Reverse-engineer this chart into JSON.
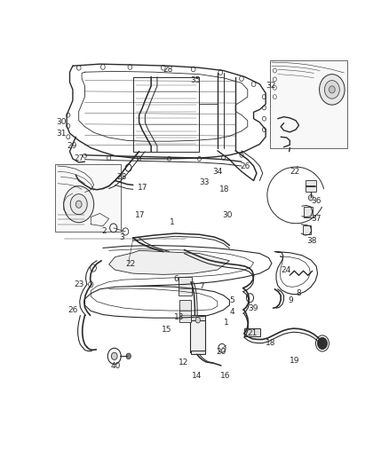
{
  "bg_color": "#ffffff",
  "fig_width": 4.38,
  "fig_height": 5.33,
  "dpi": 100,
  "lc": "#2a2a2a",
  "lc_light": "#555555",
  "lw": 0.8,
  "fs": 6.5,
  "labels_top": {
    "28a": [
      0.38,
      0.965,
      "28"
    ],
    "35": [
      0.47,
      0.935,
      "35"
    ],
    "30a": [
      0.025,
      0.82,
      "30"
    ],
    "31": [
      0.025,
      0.79,
      "31"
    ],
    "29": [
      0.06,
      0.755,
      "29"
    ],
    "27": [
      0.085,
      0.72,
      "27"
    ],
    "28b": [
      0.225,
      0.67,
      "28"
    ],
    "17a": [
      0.295,
      0.64,
      "17"
    ],
    "17b": [
      0.285,
      0.565,
      "17"
    ],
    "2": [
      0.175,
      0.52,
      "2"
    ],
    "3": [
      0.235,
      0.505,
      "3"
    ],
    "34": [
      0.545,
      0.685,
      "34"
    ],
    "33": [
      0.5,
      0.655,
      "33"
    ],
    "18a": [
      0.565,
      0.635,
      "18"
    ],
    "26a": [
      0.635,
      0.7,
      "26"
    ],
    "30b": [
      0.575,
      0.565,
      "30"
    ],
    "1a": [
      0.4,
      0.545,
      "1"
    ],
    "32": [
      0.72,
      0.92,
      "32"
    ],
    "22a": [
      0.8,
      0.685,
      "22"
    ],
    "36": [
      0.87,
      0.605,
      "36"
    ],
    "37": [
      0.87,
      0.555,
      "37"
    ],
    "38": [
      0.855,
      0.495,
      "38"
    ]
  },
  "labels_bot": {
    "22b": [
      0.255,
      0.43,
      "22"
    ],
    "23": [
      0.085,
      0.375,
      "23"
    ],
    "26b": [
      0.065,
      0.305,
      "26"
    ],
    "6": [
      0.415,
      0.39,
      "6"
    ],
    "7": [
      0.5,
      0.37,
      "7"
    ],
    "13": [
      0.415,
      0.285,
      "13"
    ],
    "15": [
      0.375,
      0.25,
      "15"
    ],
    "5": [
      0.6,
      0.33,
      "5"
    ],
    "4": [
      0.6,
      0.3,
      "4"
    ],
    "1b": [
      0.58,
      0.27,
      "1"
    ],
    "39": [
      0.66,
      0.31,
      "39"
    ],
    "9": [
      0.795,
      0.33,
      "9"
    ],
    "8": [
      0.82,
      0.35,
      "8"
    ],
    "24": [
      0.77,
      0.415,
      "24"
    ],
    "21": [
      0.66,
      0.24,
      "21"
    ],
    "18b": [
      0.72,
      0.215,
      "18"
    ],
    "20": [
      0.555,
      0.19,
      "20"
    ],
    "12": [
      0.43,
      0.16,
      "12"
    ],
    "14": [
      0.475,
      0.125,
      "14"
    ],
    "16": [
      0.57,
      0.125,
      "16"
    ],
    "19": [
      0.8,
      0.165,
      "19"
    ],
    "40": [
      0.205,
      0.15,
      "40"
    ]
  }
}
